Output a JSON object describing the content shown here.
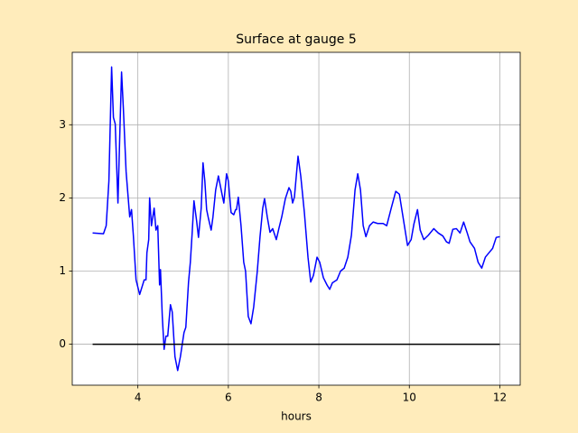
{
  "chart_data": {
    "type": "line",
    "title": "Surface at gauge 5",
    "x_label": "hours",
    "xlim": [
      2.55,
      12.45
    ],
    "ylim": [
      -0.56,
      3.99
    ],
    "xticks": [
      4,
      6,
      8,
      10,
      12
    ],
    "yticks": [
      0,
      1,
      2,
      3
    ],
    "grid": true,
    "series": [
      {
        "color": "#0000ff",
        "x": [
          3.0,
          3.24,
          3.3,
          3.36,
          3.42,
          3.46,
          3.5,
          3.56,
          3.6,
          3.64,
          3.68,
          3.74,
          3.82,
          3.86,
          3.9,
          3.96,
          4.04,
          4.14,
          4.18,
          4.2,
          4.24,
          4.26,
          4.3,
          4.36,
          4.4,
          4.44,
          4.48,
          4.5,
          4.54,
          4.58,
          4.62,
          4.66,
          4.72,
          4.76,
          4.82,
          4.88,
          4.94,
          5.02,
          5.06,
          5.12,
          5.16,
          5.2,
          5.24,
          5.3,
          5.34,
          5.4,
          5.44,
          5.48,
          5.52,
          5.56,
          5.62,
          5.66,
          5.72,
          5.78,
          5.86,
          5.9,
          5.96,
          6.0,
          6.06,
          6.12,
          6.16,
          6.18,
          6.22,
          6.28,
          6.34,
          6.38,
          6.44,
          6.5,
          6.56,
          6.64,
          6.7,
          6.76,
          6.8,
          6.86,
          6.92,
          6.98,
          7.06,
          7.12,
          7.18,
          7.26,
          7.34,
          7.38,
          7.42,
          7.46,
          7.54,
          7.6,
          7.68,
          7.76,
          7.82,
          7.88,
          7.96,
          8.02,
          8.1,
          8.18,
          8.24,
          8.3,
          8.4,
          8.48,
          8.56,
          8.64,
          8.72,
          8.8,
          8.86,
          8.92,
          8.98,
          9.04,
          9.12,
          9.2,
          9.3,
          9.42,
          9.5,
          9.6,
          9.7,
          9.78,
          9.86,
          9.96,
          10.04,
          10.1,
          10.18,
          10.24,
          10.32,
          10.42,
          10.54,
          10.64,
          10.74,
          10.82,
          10.88,
          10.96,
          11.04,
          11.12,
          11.2,
          11.28,
          11.34,
          11.44,
          11.52,
          11.6,
          11.68,
          11.76,
          11.84,
          11.92,
          12.0
        ],
        "values": [
          1.52,
          1.51,
          1.62,
          2.23,
          3.79,
          3.1,
          3.01,
          1.93,
          2.85,
          3.72,
          3.22,
          2.36,
          1.74,
          1.84,
          1.49,
          0.88,
          0.68,
          0.88,
          0.88,
          1.25,
          1.43,
          2.0,
          1.62,
          1.86,
          1.56,
          1.62,
          0.81,
          1.02,
          0.38,
          -0.07,
          0.11,
          0.11,
          0.54,
          0.44,
          -0.17,
          -0.36,
          -0.17,
          0.16,
          0.23,
          0.85,
          1.12,
          1.52,
          1.96,
          1.68,
          1.46,
          1.86,
          2.48,
          2.23,
          1.84,
          1.72,
          1.56,
          1.74,
          2.11,
          2.3,
          2.05,
          1.93,
          2.33,
          2.23,
          1.8,
          1.77,
          1.84,
          1.84,
          2.01,
          1.62,
          1.12,
          1.0,
          0.38,
          0.28,
          0.51,
          1.0,
          1.47,
          1.86,
          1.99,
          1.74,
          1.53,
          1.58,
          1.43,
          1.59,
          1.74,
          1.99,
          2.14,
          2.09,
          1.93,
          2.01,
          2.57,
          2.3,
          1.8,
          1.19,
          0.85,
          0.94,
          1.19,
          1.12,
          0.91,
          0.81,
          0.75,
          0.84,
          0.88,
          1.0,
          1.04,
          1.19,
          1.49,
          2.11,
          2.33,
          2.11,
          1.62,
          1.47,
          1.62,
          1.67,
          1.65,
          1.65,
          1.62,
          1.86,
          2.09,
          2.05,
          1.74,
          1.35,
          1.43,
          1.64,
          1.84,
          1.56,
          1.43,
          1.49,
          1.58,
          1.52,
          1.48,
          1.4,
          1.38,
          1.57,
          1.58,
          1.52,
          1.67,
          1.52,
          1.4,
          1.31,
          1.12,
          1.04,
          1.19,
          1.25,
          1.31,
          1.46,
          1.47
        ]
      },
      {
        "color": "#000000",
        "x": [
          3,
          12
        ],
        "values": [
          0,
          0
        ]
      }
    ]
  }
}
